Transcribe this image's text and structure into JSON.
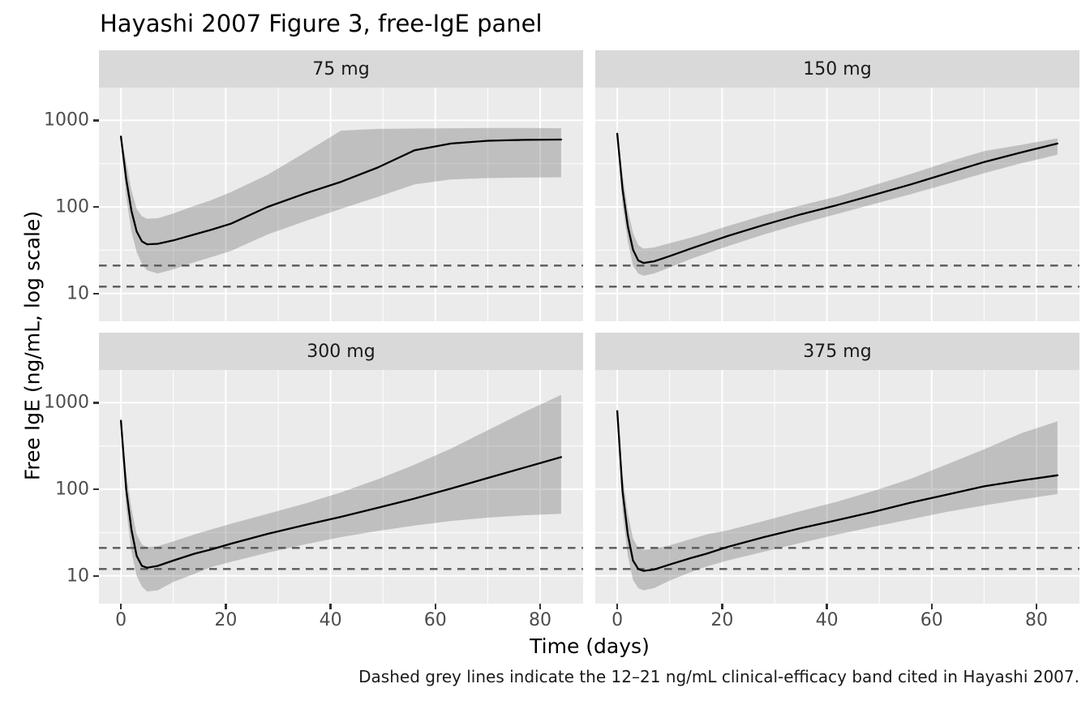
{
  "title": "Hayashi 2007 Figure 3, free-IgE panel",
  "caption": "Dashed grey lines indicate the 12–21 ng/mL clinical-efficacy band cited in Hayashi 2007.",
  "x_axis": {
    "label": "Time (days)",
    "ticks": [
      0,
      20,
      40,
      60,
      80
    ]
  },
  "y_axis": {
    "label": "Free IgE (ng/mL, log scale)",
    "ticks": [
      1000,
      100,
      10
    ]
  },
  "colors": {
    "panel_bg": "#ebebeb",
    "strip_bg": "#d9d9d9",
    "gridline": "#ffffff",
    "mean_line": "#000000",
    "ribbon": "rgba(100,100,100,0.32)",
    "reference_line": "#595959",
    "axis_text": "#4d4d4d",
    "tick_mark": "#333333"
  },
  "chart_data": {
    "type": "line",
    "title": "Hayashi 2007 Figure 3, free-IgE panel",
    "xlabel": "Time (days)",
    "ylabel": "Free IgE (ng/mL, log scale)",
    "x_scale": "linear",
    "y_scale": "log10",
    "xlim": [
      -4.2,
      88.2
    ],
    "ylim": [
      4.8,
      2390
    ],
    "x_ticks": [
      0,
      20,
      40,
      60,
      80
    ],
    "y_ticks": [
      1000,
      100,
      10
    ],
    "x_minor_gridlines": [
      10,
      30,
      50,
      70
    ],
    "y_minor_gridlines": [
      31.6,
      316
    ],
    "grid": "on",
    "legend": "none",
    "reference_lines_y": [
      21,
      12
    ],
    "reference_band_note": "12–21 ng/mL clinical-efficacy band",
    "x": [
      0,
      1,
      2,
      3,
      4,
      5,
      7,
      10,
      14,
      17,
      21,
      28,
      35,
      42,
      49,
      56,
      63,
      70,
      77,
      84
    ],
    "facets": [
      {
        "label": "75 mg",
        "row": 0,
        "col": 0,
        "mean": [
          650,
          210,
          90,
          52,
          40,
          37,
          37.5,
          41,
          48,
          54,
          64,
          100,
          142,
          195,
          285,
          450,
          540,
          580,
          595,
          600
        ],
        "lower": [
          640,
          130,
          52,
          30,
          22,
          18.5,
          17,
          19,
          23,
          26,
          31,
          48,
          68,
          95,
          130,
          182,
          208,
          215,
          218,
          220
        ],
        "upper": [
          660,
          330,
          155,
          95,
          78,
          73,
          74,
          84,
          103,
          118,
          148,
          235,
          420,
          760,
          795,
          805,
          810,
          815,
          815,
          810
        ]
      },
      {
        "label": "150 mg",
        "row": 0,
        "col": 1,
        "mean": [
          700,
          160,
          60,
          32,
          24,
          22.5,
          23.5,
          27,
          33,
          38,
          46,
          62,
          82,
          105,
          138,
          182,
          245,
          330,
          425,
          540
        ],
        "lower": [
          690,
          105,
          40,
          21,
          17,
          16,
          17,
          20,
          25,
          29,
          35,
          48,
          64,
          83,
          108,
          140,
          185,
          245,
          318,
          400
        ],
        "upper": [
          710,
          235,
          92,
          50,
          36,
          33,
          34,
          38,
          44,
          50,
          60,
          80,
          104,
          132,
          178,
          240,
          330,
          440,
          520,
          620
        ]
      },
      {
        "label": "300 mg",
        "row": 1,
        "col": 0,
        "mean": [
          620,
          100,
          34,
          17,
          13,
          12.4,
          13,
          15,
          18,
          20,
          23.5,
          30.5,
          38.5,
          48,
          61,
          78,
          102,
          135,
          178,
          235
        ],
        "lower": [
          610,
          60,
          19,
          10,
          7.5,
          6.6,
          6.8,
          8.5,
          10.5,
          12.5,
          14.5,
          18.5,
          23,
          28,
          33,
          38,
          43,
          47,
          50,
          52
        ],
        "upper": [
          630,
          155,
          60,
          30,
          23,
          21.5,
          22,
          25,
          30,
          34,
          40,
          52,
          68,
          92,
          130,
          192,
          295,
          480,
          780,
          1230
        ]
      },
      {
        "label": "375 mg",
        "row": 1,
        "col": 1,
        "mean": [
          800,
          95,
          30,
          15,
          12,
          11.4,
          11.8,
          13.5,
          16,
          18,
          21.5,
          28,
          35.5,
          44,
          55,
          70,
          87,
          108,
          126,
          145
        ],
        "lower": [
          790,
          55,
          17,
          9,
          7.2,
          6.8,
          7.2,
          8.8,
          11,
          12.8,
          15,
          19,
          24,
          30,
          37,
          45,
          55,
          65,
          76,
          88
        ],
        "upper": [
          810,
          145,
          52,
          27,
          21,
          20,
          20.5,
          22.5,
          26.5,
          30,
          33.5,
          43,
          56,
          72,
          96,
          132,
          195,
          290,
          440,
          610
        ]
      }
    ]
  }
}
